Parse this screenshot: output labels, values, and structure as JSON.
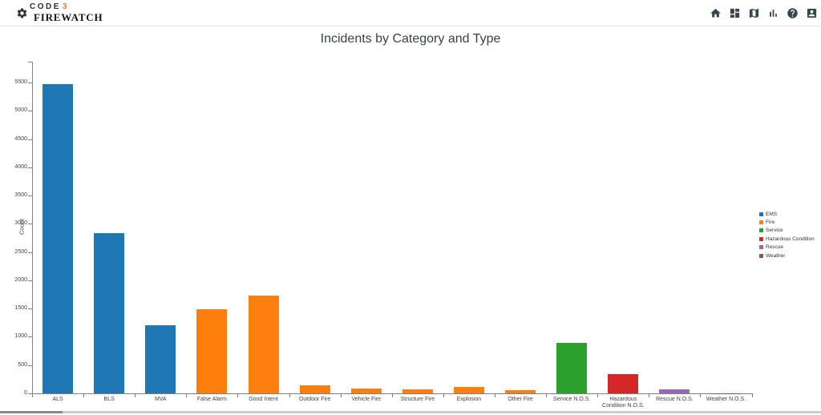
{
  "header": {
    "logo": {
      "code": "CODE",
      "three": "3",
      "firewatch": "FIREWATCH"
    },
    "left_icons": [
      {
        "name": "settings-gear-icon"
      }
    ],
    "right_icons": [
      {
        "name": "home-icon"
      },
      {
        "name": "dashboard-icon"
      },
      {
        "name": "map-icon"
      },
      {
        "name": "bar-chart-icon"
      },
      {
        "name": "help-icon"
      },
      {
        "name": "account-icon"
      }
    ]
  },
  "chart_data": {
    "type": "bar",
    "title": "Incidents by Category and Type",
    "xlabel": "",
    "ylabel": "Count",
    "ylim": [
      0,
      5870
    ],
    "yticks": [
      0,
      500,
      1000,
      1500,
      2000,
      2500,
      3000,
      3500,
      4000,
      4500,
      5000,
      5500
    ],
    "grid": false,
    "legend_position": "right",
    "categories": [
      "ALS",
      "BLS",
      "MVA",
      "False Alarm",
      "Good Intent",
      "Outdoor Fire",
      "Vehicle Fire",
      "Structure Fire",
      "Explosion",
      "Other Fire",
      "Service N.O.S.",
      "Hazardous Condition N.O.S.",
      "Rescue N.O.S.",
      "Weather N.O.S."
    ],
    "values": [
      5480,
      2830,
      1210,
      1490,
      1735,
      135,
      90,
      75,
      110,
      55,
      890,
      335,
      65,
      5
    ],
    "groups": [
      "EMS",
      "EMS",
      "EMS",
      "Fire",
      "Fire",
      "Fire",
      "Fire",
      "Fire",
      "Fire",
      "Fire",
      "Service",
      "Hazardous Condition",
      "Rescue",
      "Weather"
    ],
    "legend": [
      {
        "label": "EMS",
        "color": "#1f77b4"
      },
      {
        "label": "Fire",
        "color": "#ff7f0e"
      },
      {
        "label": "Service",
        "color": "#2ca02c"
      },
      {
        "label": "Hazardous Condition",
        "color": "#d62728"
      },
      {
        "label": "Rescue",
        "color": "#9467bd"
      },
      {
        "label": "Weather",
        "color": "#8c564b"
      }
    ]
  }
}
